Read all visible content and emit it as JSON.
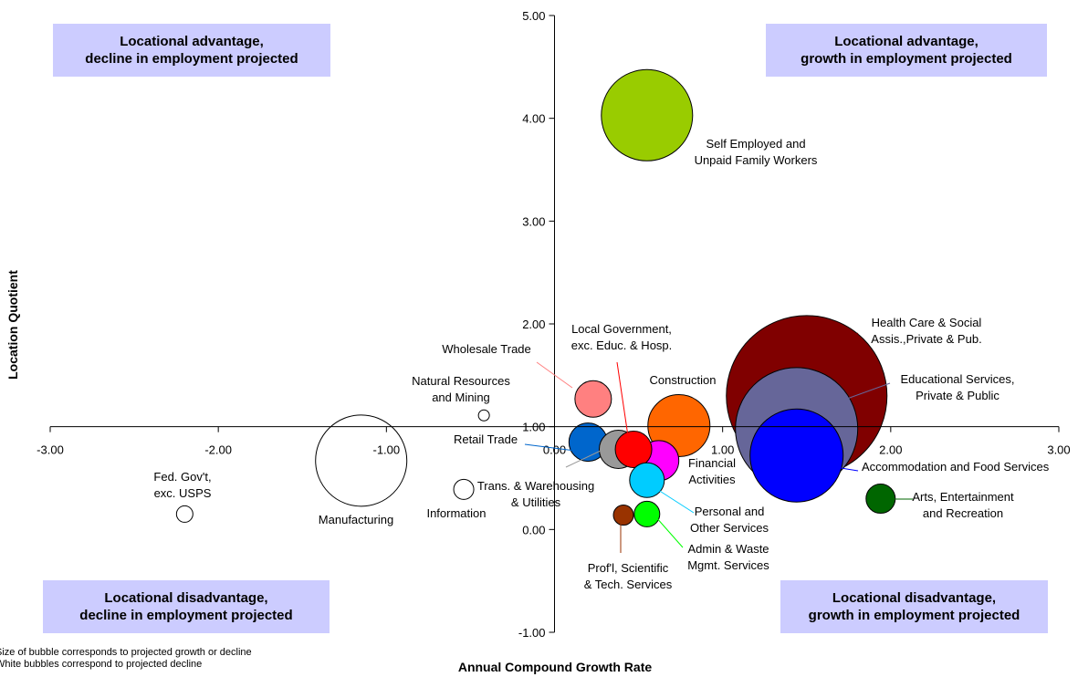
{
  "chart_data": {
    "type": "bubble",
    "xlabel": "Annual Compound Growth Rate",
    "ylabel": "Location Quotient",
    "xlim": [
      -3,
      3
    ],
    "ylim": [
      -1,
      5
    ],
    "x_ticks": [
      "-3.00",
      "-2.00",
      "-1.00",
      "0.00",
      "1.00",
      "2.00",
      "3.00"
    ],
    "y_ticks": [
      "-1.00",
      "0.00",
      "1.00",
      "2.00",
      "3.00",
      "4.00",
      "5.00"
    ],
    "grid": false,
    "quadrants": {
      "top_left": [
        "Locational advantage,",
        "decline in employment projected"
      ],
      "top_right": [
        "Locational advantage,",
        "growth in employment  projected"
      ],
      "bottom_left": [
        "Locational disadvantage,",
        "decline in employment  projected"
      ],
      "bottom_right": [
        "Locational disadvantage,",
        "growth in employment projected"
      ]
    },
    "notes": [
      "Size of bubble corresponds to projected growth or decline",
      "White bubbles correspond to projected decline"
    ],
    "series": [
      {
        "label": [
          "Self Employed and",
          "Unpaid Family Workers"
        ],
        "x": 0.55,
        "y": 4.03,
        "size": 50,
        "color": "#99cc00"
      },
      {
        "label": [
          "Health Care & Social",
          "Assis.,Private & Pub."
        ],
        "x": 1.5,
        "y": 1.3,
        "size": 88,
        "color": "#800000"
      },
      {
        "label": [
          "Educational Services,",
          "Private & Public"
        ],
        "x": 1.44,
        "y": 0.98,
        "size": 67,
        "color": "#666699"
      },
      {
        "label": [
          "Accommodation and Food Services"
        ],
        "x": 1.44,
        "y": 0.72,
        "size": 51,
        "color": "#0000ff"
      },
      {
        "label": [
          "Construction"
        ],
        "x": 0.74,
        "y": 1.01,
        "size": 34,
        "color": "#ff6600"
      },
      {
        "label": [
          "Arts, Entertainment",
          "and Recreation"
        ],
        "x": 1.94,
        "y": 0.3,
        "size": 16,
        "color": "#006600"
      },
      {
        "label": [
          "Wholesale Trade"
        ],
        "x": 0.23,
        "y": 1.27,
        "size": 20,
        "color": "#ff8080"
      },
      {
        "label": [
          "Local Government,",
          "exc. Educ. & Hosp."
        ],
        "x": 0.47,
        "y": 0.78,
        "size": 20,
        "color": "#ff0000"
      },
      {
        "label": [
          "Retail Trade"
        ],
        "x": 0.2,
        "y": 0.85,
        "size": 21,
        "color": "#0066cc"
      },
      {
        "label": [
          "Trans. & Warehousing",
          "& Utilities"
        ],
        "x": 0.38,
        "y": 0.78,
        "size": 21,
        "color": "#999999"
      },
      {
        "label": [
          "Financial",
          "Activities"
        ],
        "x": 0.62,
        "y": 0.67,
        "size": 22,
        "color": "#ff00ff"
      },
      {
        "label": [
          "Personal and",
          "Other Services"
        ],
        "x": 0.55,
        "y": 0.48,
        "size": 19,
        "color": "#00ccff"
      },
      {
        "label": [
          "Admin & Waste",
          "Mgmt. Services"
        ],
        "x": 0.55,
        "y": 0.15,
        "size": 14,
        "color": "#00ff00"
      },
      {
        "label": [
          "Prof'l, Scientific",
          "& Tech. Services"
        ],
        "x": 0.41,
        "y": 0.14,
        "size": 11,
        "color": "#993300"
      },
      {
        "label": [
          "Natural Resources",
          "and Mining"
        ],
        "x": -0.42,
        "y": 1.11,
        "size": 6,
        "color": "#ffffff"
      },
      {
        "label": [
          "Manufacturing"
        ],
        "x": -1.15,
        "y": 0.67,
        "size": 50,
        "color": "#ffffff"
      },
      {
        "label": [
          "Information"
        ],
        "x": -0.54,
        "y": 0.39,
        "size": 11,
        "color": "#ffffff"
      },
      {
        "label": [
          "Fed. Gov't,",
          "exc. USPS"
        ],
        "x": -2.2,
        "y": 0.15,
        "size": 9,
        "color": "#ffffff"
      }
    ]
  }
}
